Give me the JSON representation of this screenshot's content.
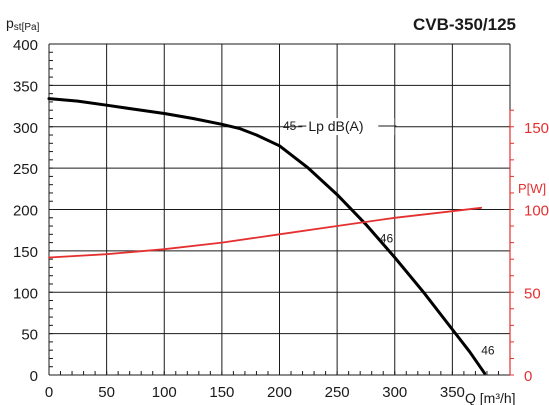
{
  "chart_data": {
    "type": "line",
    "title": "CVB-350/125",
    "y_label_main": "p",
    "y_label_sub": "st",
    "y_label_unit": "[Pa]",
    "x_label": "Q [m³/h]",
    "y2_label": "P[W]",
    "xlim": [
      0,
      400
    ],
    "ylim": [
      0,
      400
    ],
    "y2lim": [
      0,
      200
    ],
    "x_ticks": [
      "0",
      "50",
      "100",
      "150",
      "200",
      "250",
      "300",
      "350"
    ],
    "x_tick_values": [
      0,
      50,
      100,
      150,
      200,
      250,
      300,
      350
    ],
    "y_ticks": [
      "0",
      "50",
      "100",
      "150",
      "200",
      "250",
      "300",
      "350",
      "400"
    ],
    "y_tick_values": [
      0,
      50,
      100,
      150,
      200,
      250,
      300,
      350,
      400
    ],
    "y2_ticks": [
      "0",
      "50",
      "100",
      "150"
    ],
    "y2_tick_values": [
      0,
      50,
      100,
      150
    ],
    "grid": true,
    "series": [
      {
        "axis": "left",
        "color": "#000000",
        "points": [
          [
            0,
            334
          ],
          [
            25,
            331
          ],
          [
            50,
            326
          ],
          [
            75,
            321
          ],
          [
            100,
            316
          ],
          [
            125,
            310
          ],
          [
            150,
            303
          ],
          [
            165,
            298
          ],
          [
            180,
            290
          ],
          [
            200,
            277
          ],
          [
            225,
            250
          ],
          [
            250,
            218
          ],
          [
            275,
            182
          ],
          [
            300,
            142
          ],
          [
            325,
            100
          ],
          [
            350,
            55
          ],
          [
            365,
            28
          ],
          [
            378,
            2
          ]
        ]
      },
      {
        "axis": "right",
        "color": "#e53030",
        "points": [
          [
            0,
            71
          ],
          [
            50,
            73
          ],
          [
            100,
            76
          ],
          [
            150,
            80
          ],
          [
            200,
            85
          ],
          [
            250,
            90
          ],
          [
            300,
            95
          ],
          [
            350,
            99
          ],
          [
            375,
            101
          ]
        ]
      }
    ],
    "annotations": [
      {
        "text": "45",
        "x": 203,
        "y": 296,
        "axis": "left"
      },
      {
        "text": "Lp dB(A)",
        "x": 225,
        "y": 296,
        "axis": "left"
      },
      {
        "text": "46",
        "x": 287,
        "y": 160,
        "axis": "left"
      },
      {
        "text": "46",
        "x": 375,
        "y": 25,
        "axis": "left"
      }
    ]
  }
}
